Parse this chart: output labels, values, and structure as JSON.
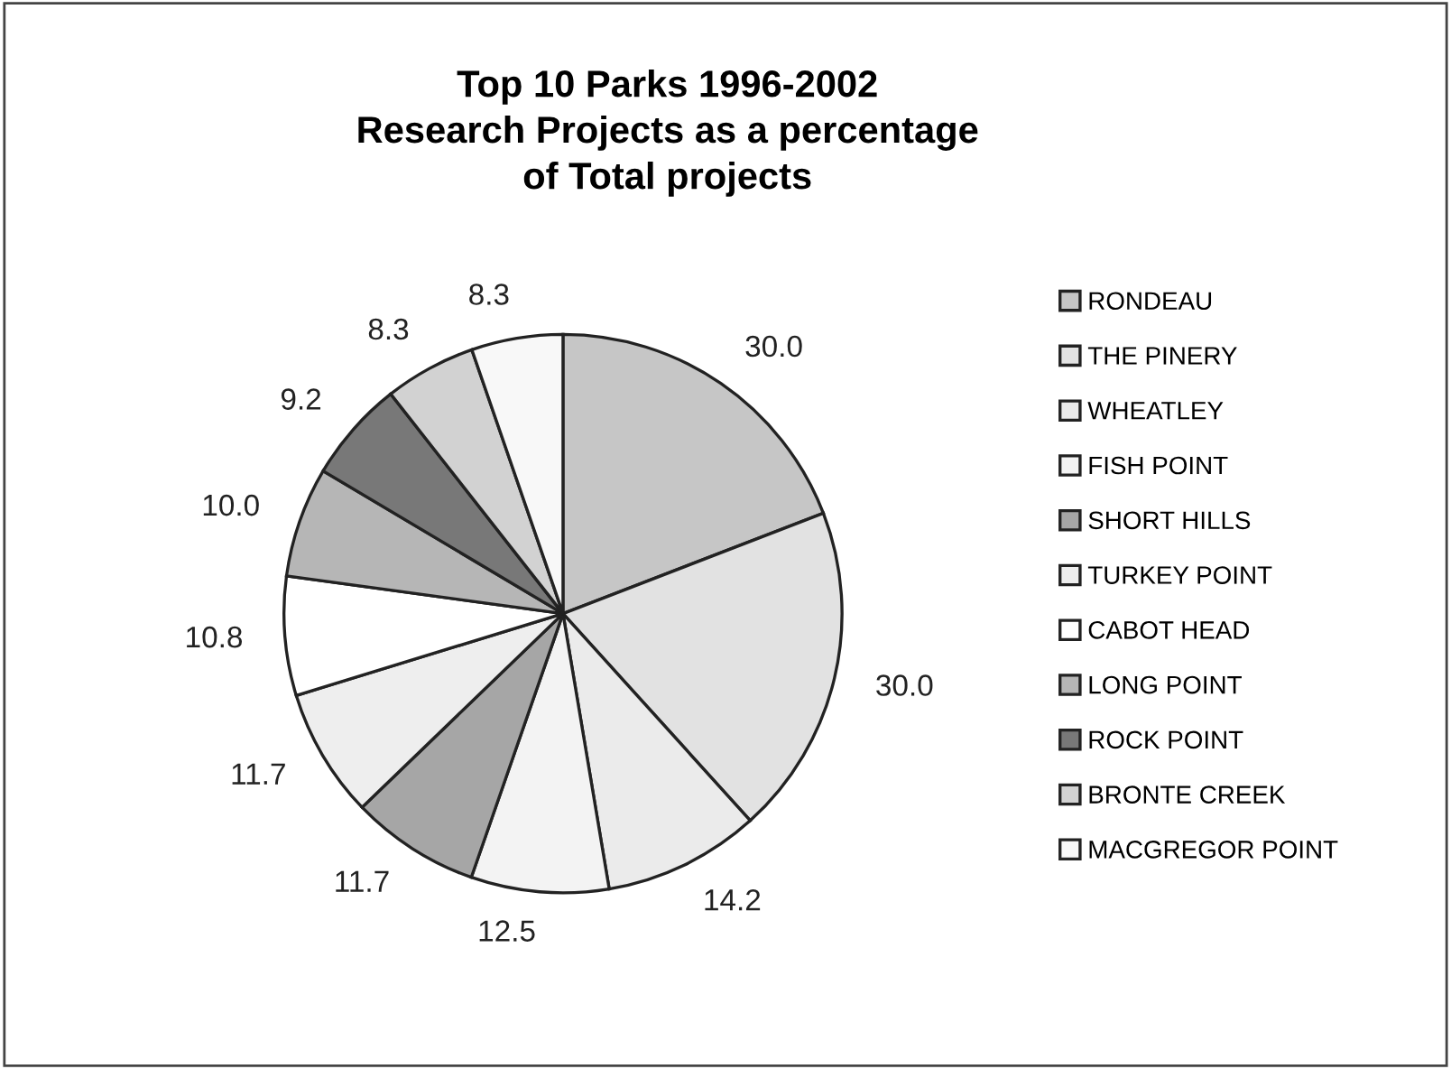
{
  "chart_data": {
    "type": "pie",
    "title": "Top 10 Parks 1996-2002\nResearch Projects as a percentage\nof Total projects",
    "categories": [
      "RONDEAU",
      "THE PINERY",
      "WHEATLEY",
      "FISH POINT",
      "SHORT HILLS",
      "TURKEY POINT",
      "CABOT HEAD",
      "LONG POINT",
      "ROCK POINT",
      "BRONTE CREEK",
      "MACGREGOR POINT"
    ],
    "values": [
      30.0,
      30.0,
      14.2,
      12.5,
      11.7,
      11.7,
      10.8,
      10.0,
      9.2,
      8.3,
      8.3
    ],
    "colors": [
      "#c6c6c6",
      "#e2e2e2",
      "#ebebeb",
      "#f3f3f3",
      "#a6a6a6",
      "#eeeeee",
      "#ffffff",
      "#b6b6b6",
      "#787878",
      "#d2d2d2",
      "#f8f8f8"
    ],
    "value_labels": [
      "30.0",
      "30.0",
      "14.2",
      "12.5",
      "11.7",
      "11.7",
      "10.8",
      "10.0",
      "9.2",
      "8.3",
      "8.3"
    ],
    "legend": "right"
  }
}
